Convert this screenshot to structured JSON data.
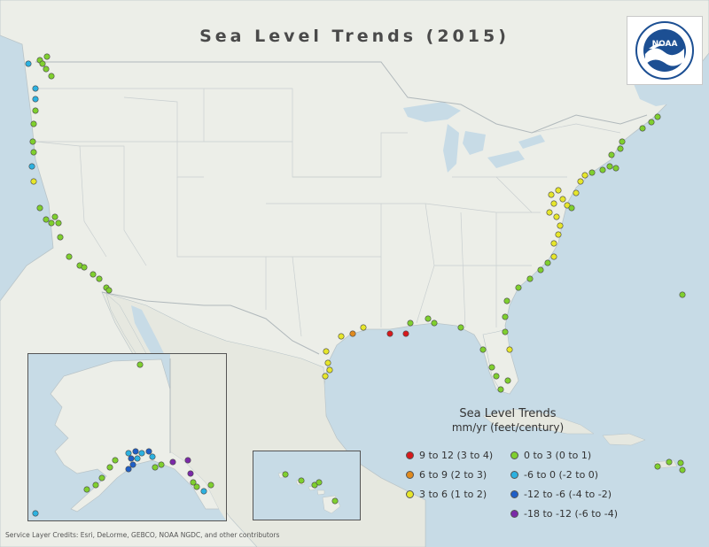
{
  "map": {
    "title": "Sea Level Trends (2015)",
    "agency_logo": "NOAA",
    "credits": "Service Layer Credits: Esri, DeLorme, GEBCO, NOAA NGDC, and other contributors",
    "insets": [
      "Alaska",
      "Hawaii"
    ]
  },
  "legend": {
    "title": "Sea Level Trends",
    "unit": "mm/yr (feet/century)",
    "items": [
      {
        "label": "9 to 12 (3 to 4)",
        "color": "#d7191c",
        "column": 0,
        "row": 0
      },
      {
        "label": "6 to 9 (2 to 3)",
        "color": "#e08a1e",
        "column": 0,
        "row": 1
      },
      {
        "label": "3 to 6 (1 to 2)",
        "color": "#e6e62a",
        "column": 0,
        "row": 2
      },
      {
        "label": "0 to 3 (0 to 1)",
        "color": "#7fcf2e",
        "column": 1,
        "row": 0
      },
      {
        "label": "-6 to 0 (-2 to 0)",
        "color": "#2cb1e0",
        "column": 1,
        "row": 1
      },
      {
        "label": "-12 to -6 (-4 to -2)",
        "color": "#1f5fc7",
        "column": 1,
        "row": 2
      },
      {
        "label": "-18 to -12 (-6 to -4)",
        "color": "#7b2aa8",
        "column": 1,
        "row": 3
      }
    ]
  },
  "colors": {
    "ocean": "#cfe0ea",
    "land": "#eef0ea",
    "red": "#d7191c",
    "orange": "#e08a1e",
    "yellow": "#e6e62a",
    "green": "#7fcf2e",
    "lightblue": "#2cb1e0",
    "blue": "#1f5fc7",
    "purple": "#7b2aa8"
  }
}
